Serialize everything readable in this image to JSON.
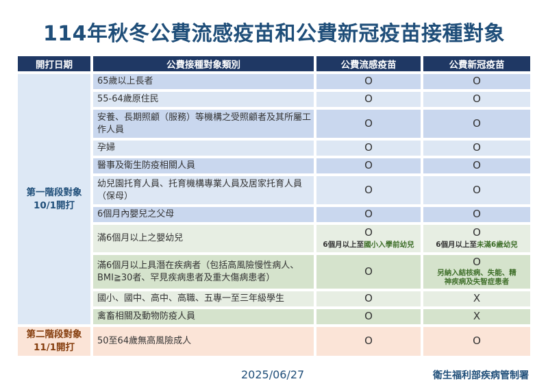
{
  "title": "114年秋冬公費流感疫苗和公費新冠疫苗接種對象",
  "headers": [
    "開打日期",
    "公費接種對象類別",
    "公費流感疫苗",
    "公費新冠疫苗"
  ],
  "stages": [
    {
      "label": "第一階段對象",
      "date": "10/1開打"
    },
    {
      "label": "第二階段對象",
      "date": "11/1開打"
    }
  ],
  "rows": [
    {
      "stage": 0,
      "tone": "b1",
      "category": "65歲以上長者",
      "flu": "O",
      "covid": "O"
    },
    {
      "stage": 0,
      "tone": "b2",
      "category": "55-64歲原住民",
      "flu": "O",
      "covid": "O"
    },
    {
      "stage": 0,
      "tone": "b1",
      "category": "安養、長期照顧（服務）等機構之受照顧者及其所屬工作人員",
      "flu": "O",
      "covid": "O"
    },
    {
      "stage": 0,
      "tone": "b2",
      "category": "孕婦",
      "flu": "O",
      "covid": "O"
    },
    {
      "stage": 0,
      "tone": "b1",
      "category": "醫事及衛生防疫相關人員",
      "flu": "O",
      "covid": "O"
    },
    {
      "stage": 0,
      "tone": "b2",
      "category": "幼兒園托育人員、托育機構專業人員及居家托育人員（保母）",
      "flu": "O",
      "covid": "O"
    },
    {
      "stage": 0,
      "tone": "b1",
      "category": "6個月內嬰兒之父母",
      "flu": "O",
      "covid": "O"
    },
    {
      "stage": 0,
      "tone": "g1",
      "category": "滿6個月以上之嬰幼兒",
      "flu": "O",
      "flu_note": [
        "6個月以上至",
        "國小入學前幼兒"
      ],
      "covid": "O",
      "covid_note": [
        "6個月以上至",
        "未滿6歲幼兒"
      ]
    },
    {
      "stage": 0,
      "tone": "g2",
      "category": "滿6個月以上具潛在疾病者（包括高風險慢性病人、BMI≧30者、罕見疾病患者及重大傷病患者）",
      "flu": "O",
      "covid": "O",
      "covid_note2": "另納入結核病、失能、精神疾病及失智症患者"
    },
    {
      "stage": 0,
      "tone": "g1",
      "category": "國小、國中、高中、高職、五專一至三年級學生",
      "flu": "O",
      "covid": "X"
    },
    {
      "stage": 0,
      "tone": "g2",
      "category": "禽畜相關及動物防疫人員",
      "flu": "O",
      "covid": "X"
    },
    {
      "stage": 1,
      "tone": "p",
      "category": "50至64歲無高風險成人",
      "flu": "O",
      "covid": "O"
    }
  ],
  "footer": {
    "date": "2025/06/27",
    "org": "衛生福利部疾病管制署"
  }
}
